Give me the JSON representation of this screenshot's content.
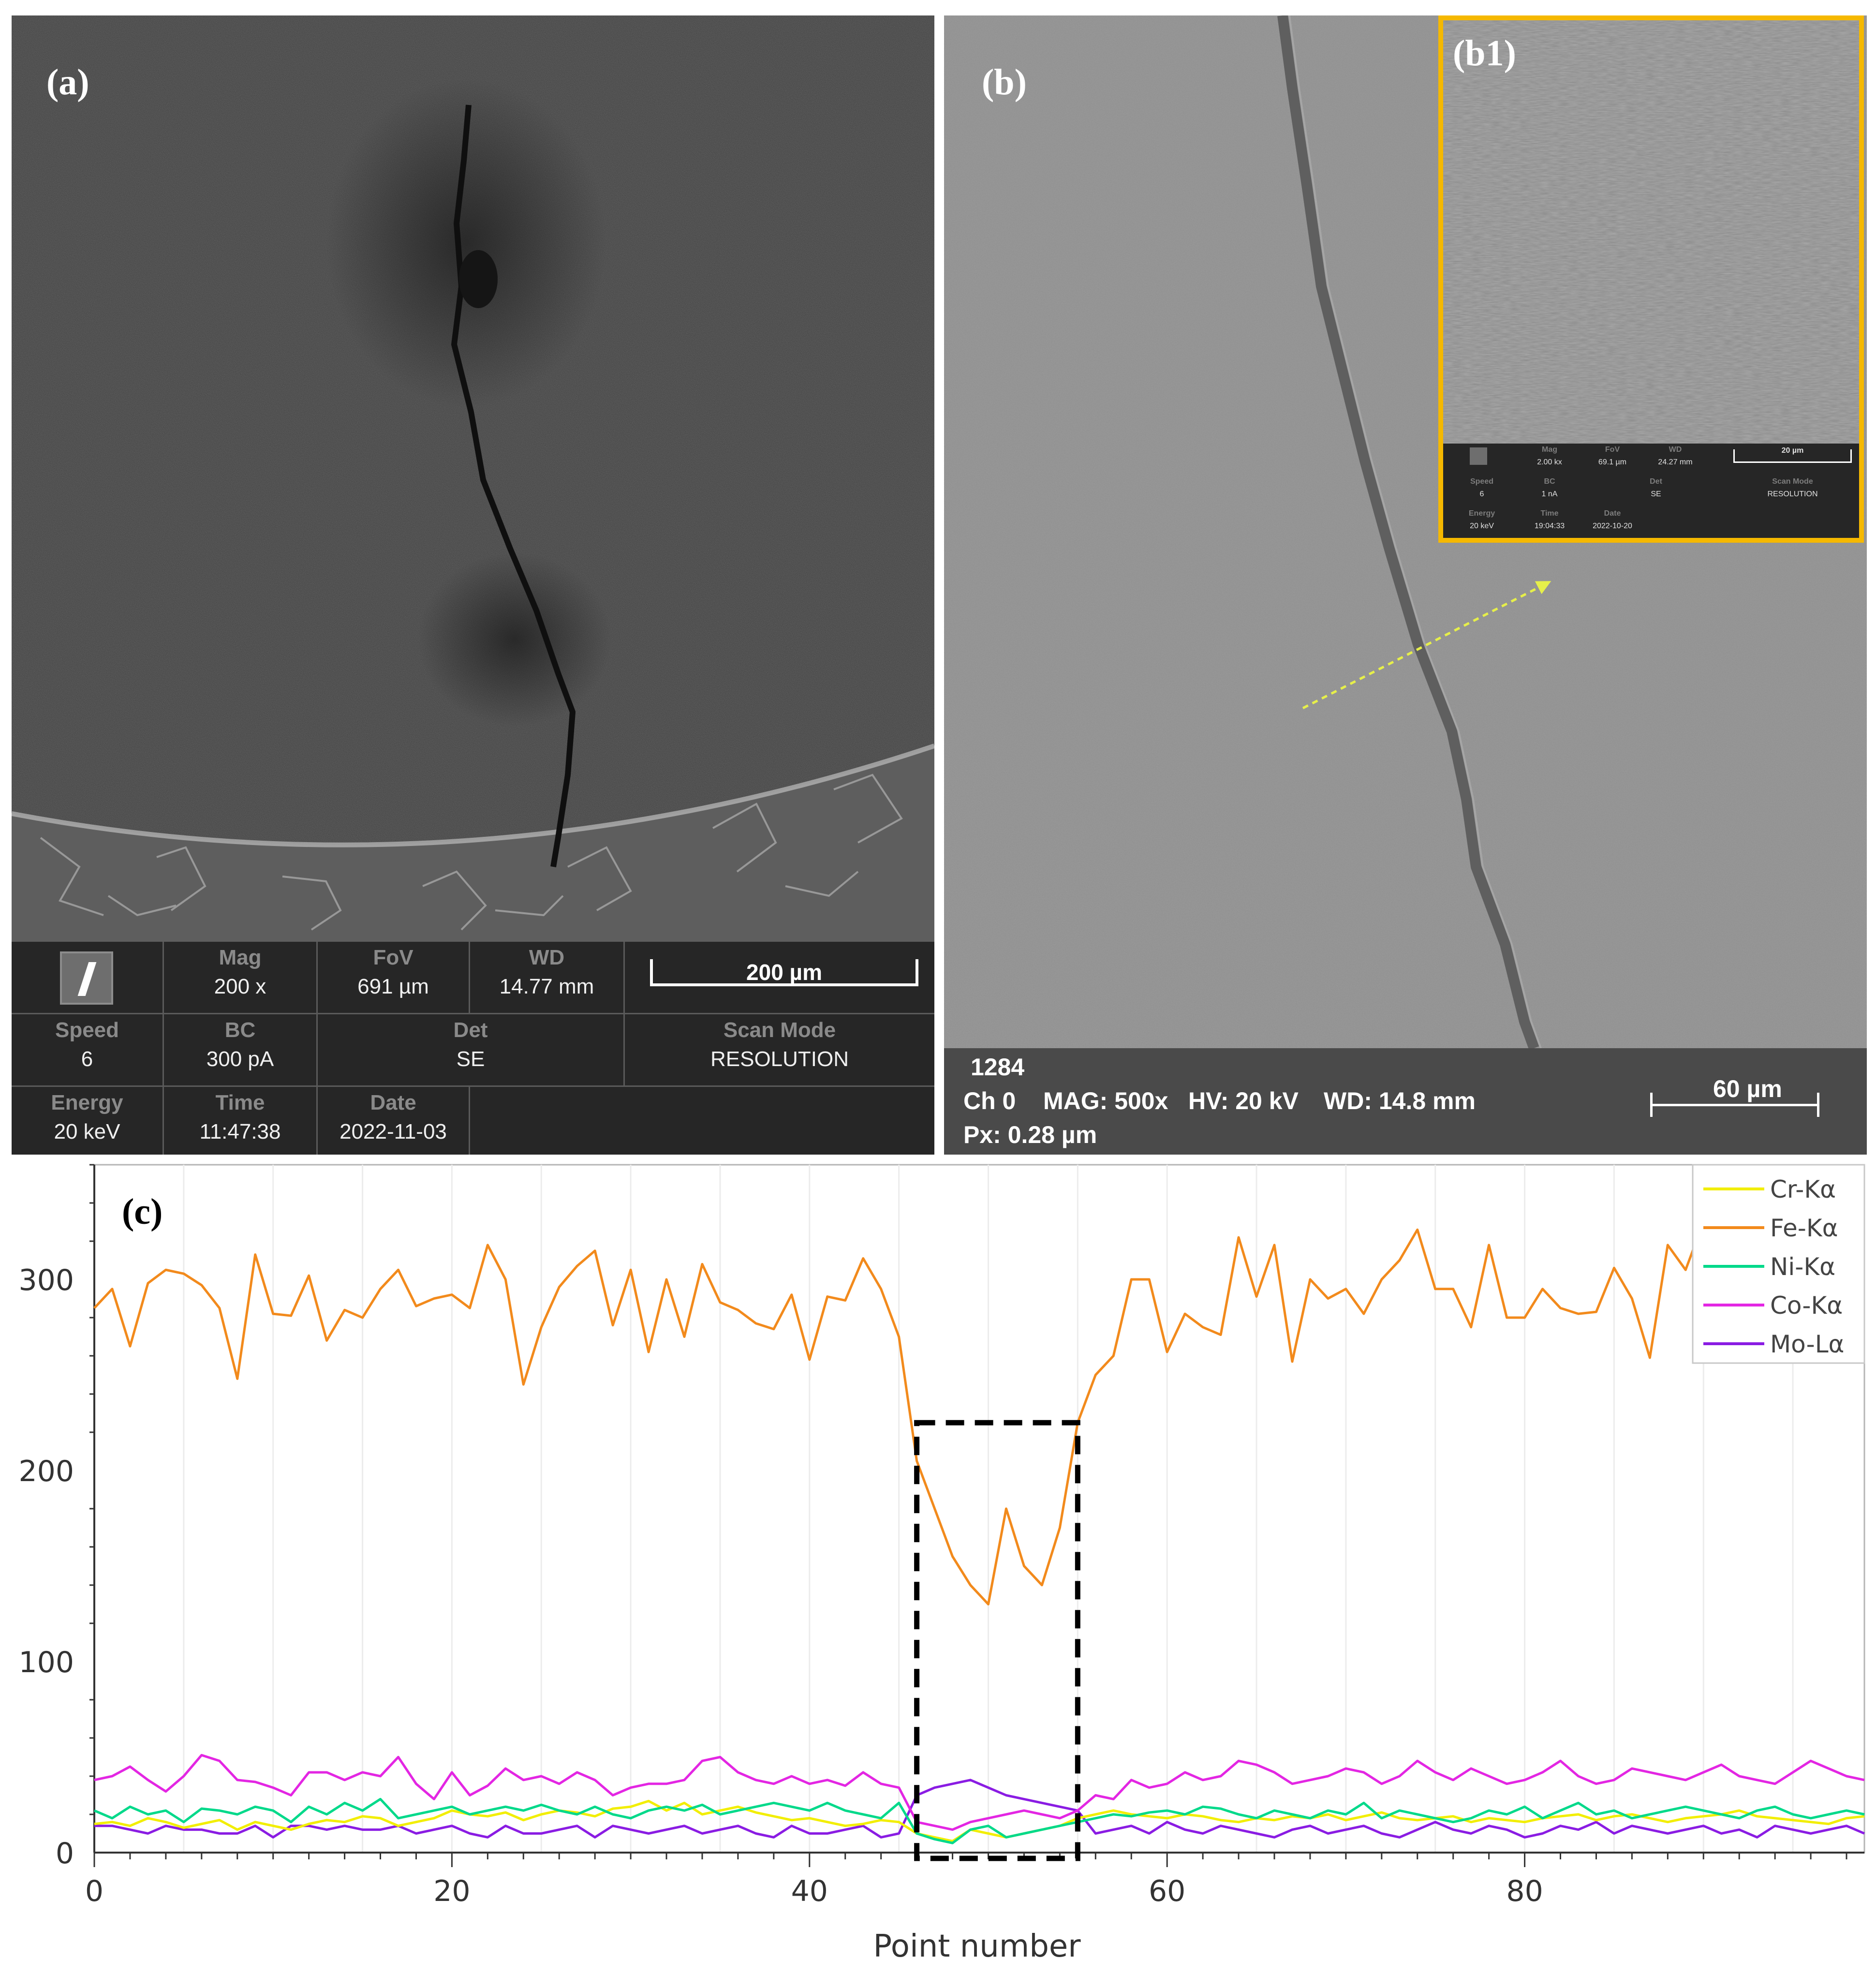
{
  "panel_a": {
    "label": "(a)",
    "info": {
      "mag_label": "Mag",
      "mag_value": "200 x",
      "fov_label": "FoV",
      "fov_value": "691 µm",
      "wd_label": "WD",
      "wd_value": "14.77 mm",
      "scale_text": "200 µm",
      "speed_label": "Speed",
      "speed_value": "6",
      "bc_label": "BC",
      "bc_value": "300 pA",
      "det_label": "Det",
      "det_value": "SE",
      "scan_label": "Scan Mode",
      "scan_value": "RESOLUTION",
      "energy_label": "Energy",
      "energy_value": "20 keV",
      "time_label": "Time",
      "time_value": "11:47:38",
      "date_label": "Date",
      "date_value": "2022-11-03"
    }
  },
  "panel_b": {
    "label": "(b)",
    "info": {
      "id": "1284",
      "ch": "Ch 0",
      "mag": "MAG: 500x",
      "hv": "HV: 20 kV",
      "wd": "WD: 14.8 mm",
      "px": "Px: 0.28 µm",
      "scale_text": "60 µm"
    },
    "inset": {
      "label": "(b1)",
      "mag_label": "Mag",
      "mag_value": "2.00 kx",
      "fov_label": "FoV",
      "fov_value": "69.1 µm",
      "wd_label": "WD",
      "wd_value": "24.27 mm",
      "scale_text": "20 µm",
      "speed_label": "Speed",
      "speed_value": "6",
      "bc_label": "BC",
      "bc_value": "1 nA",
      "det_label": "Det",
      "det_value": "SE",
      "scan_label": "Scan Mode",
      "scan_value": "RESOLUTION",
      "energy_label": "Energy",
      "energy_value": "20 keV",
      "time_label": "Time",
      "time_value": "19:04:33",
      "date_label": "Date",
      "date_value": "2022-10-20"
    }
  },
  "colors": {
    "cr": "#f2ee00",
    "fe": "#f28a1c",
    "ni": "#00d98a",
    "co": "#e326e3",
    "mo": "#8a1ce3",
    "inset_border": "#f5b800"
  },
  "chart_data": {
    "type": "line",
    "panel_label": "(c)",
    "xlabel": "Point number",
    "ylabel": "",
    "xlim": [
      0,
      99
    ],
    "ylim": [
      0,
      360
    ],
    "xticks": [
      0,
      20,
      40,
      60,
      80
    ],
    "yticks": [
      0,
      100,
      200,
      300
    ],
    "legend_position": "top-right",
    "highlight_box": {
      "x": [
        46,
        55
      ],
      "y": [
        0,
        225
      ]
    },
    "series": [
      {
        "name": "Cr-Kα",
        "values": [
          15,
          16,
          14,
          18,
          16,
          13,
          15,
          17,
          12,
          16,
          14,
          12,
          15,
          17,
          16,
          19,
          18,
          14,
          16,
          18,
          22,
          20,
          19,
          21,
          17,
          20,
          22,
          21,
          19,
          23,
          24,
          27,
          22,
          26,
          20,
          22,
          24,
          21,
          19,
          17,
          18,
          16,
          14,
          15,
          17,
          16,
          10,
          8,
          6,
          12,
          10,
          8,
          10,
          12,
          14,
          18,
          20,
          22,
          20,
          19,
          18,
          20,
          19,
          17,
          16,
          18,
          17,
          19,
          18,
          20,
          17,
          19,
          21,
          18,
          17,
          18,
          19,
          16,
          18,
          17,
          16,
          18,
          19,
          20,
          17,
          19,
          20,
          18,
          16,
          18,
          19,
          20,
          22,
          19,
          18,
          17,
          16,
          15,
          18,
          19
        ]
      },
      {
        "name": "Fe-Kα",
        "values": [
          285,
          295,
          265,
          298,
          305,
          303,
          297,
          285,
          248,
          313,
          282,
          281,
          302,
          268,
          284,
          280,
          295,
          305,
          286,
          290,
          292,
          285,
          318,
          300,
          245,
          275,
          296,
          307,
          315,
          276,
          305,
          262,
          300,
          270,
          308,
          288,
          284,
          277,
          274,
          292,
          258,
          291,
          289,
          311,
          295,
          270,
          205,
          180,
          155,
          140,
          130,
          180,
          150,
          140,
          170,
          225,
          250,
          260,
          300,
          300,
          262,
          282,
          275,
          271,
          322,
          291,
          318,
          257,
          300,
          290,
          295,
          282,
          300,
          310,
          326,
          295,
          295,
          275,
          318,
          280,
          280,
          295,
          285,
          282,
          283,
          306,
          290,
          259,
          318,
          305,
          330,
          305,
          295,
          300,
          310,
          292,
          298,
          305,
          315,
          320
        ]
      },
      {
        "name": "Ni-Kα",
        "values": [
          22,
          18,
          24,
          20,
          22,
          16,
          23,
          22,
          20,
          24,
          22,
          16,
          24,
          20,
          26,
          22,
          28,
          18,
          20,
          22,
          24,
          20,
          22,
          24,
          22,
          25,
          22,
          20,
          24,
          20,
          18,
          22,
          24,
          22,
          25,
          20,
          22,
          24,
          26,
          24,
          22,
          26,
          22,
          20,
          18,
          26,
          10,
          7,
          5,
          12,
          14,
          8,
          10,
          12,
          14,
          16,
          18,
          20,
          19,
          21,
          22,
          20,
          24,
          23,
          20,
          18,
          22,
          20,
          18,
          22,
          20,
          26,
          18,
          22,
          20,
          18,
          16,
          18,
          22,
          20,
          24,
          18,
          22,
          26,
          20,
          22,
          18,
          20,
          22,
          24,
          22,
          20,
          18,
          22,
          24,
          20,
          18,
          20,
          22,
          20
        ]
      },
      {
        "name": "Co-Kα",
        "values": [
          38,
          40,
          45,
          38,
          32,
          40,
          51,
          48,
          38,
          37,
          34,
          30,
          42,
          42,
          38,
          42,
          40,
          50,
          36,
          28,
          42,
          30,
          35,
          44,
          38,
          40,
          36,
          42,
          38,
          30,
          34,
          36,
          36,
          38,
          48,
          50,
          42,
          38,
          36,
          40,
          36,
          38,
          35,
          42,
          36,
          34,
          16,
          14,
          12,
          16,
          18,
          20,
          22,
          20,
          18,
          22,
          30,
          28,
          38,
          34,
          36,
          42,
          38,
          40,
          48,
          46,
          42,
          36,
          38,
          40,
          44,
          42,
          36,
          40,
          48,
          42,
          38,
          44,
          40,
          36,
          38,
          42,
          48,
          40,
          36,
          38,
          44,
          42,
          40,
          38,
          42,
          46,
          40,
          38,
          36,
          42,
          48,
          44,
          40,
          38
        ]
      },
      {
        "name": "Mo-Lα",
        "values": [
          14,
          14,
          12,
          10,
          14,
          12,
          12,
          10,
          10,
          14,
          8,
          14,
          14,
          12,
          14,
          12,
          12,
          14,
          10,
          12,
          14,
          10,
          8,
          14,
          10,
          10,
          12,
          14,
          8,
          14,
          12,
          10,
          12,
          14,
          10,
          12,
          14,
          10,
          8,
          14,
          10,
          10,
          12,
          14,
          8,
          10,
          30,
          34,
          36,
          38,
          34,
          30,
          28,
          26,
          24,
          22,
          10,
          12,
          14,
          10,
          16,
          12,
          10,
          14,
          12,
          10,
          8,
          12,
          14,
          10,
          12,
          14,
          10,
          8,
          12,
          16,
          12,
          10,
          14,
          12,
          8,
          10,
          14,
          12,
          16,
          10,
          14,
          12,
          10,
          12,
          14,
          10,
          12,
          8,
          14,
          12,
          10,
          12,
          14,
          10
        ]
      }
    ]
  }
}
